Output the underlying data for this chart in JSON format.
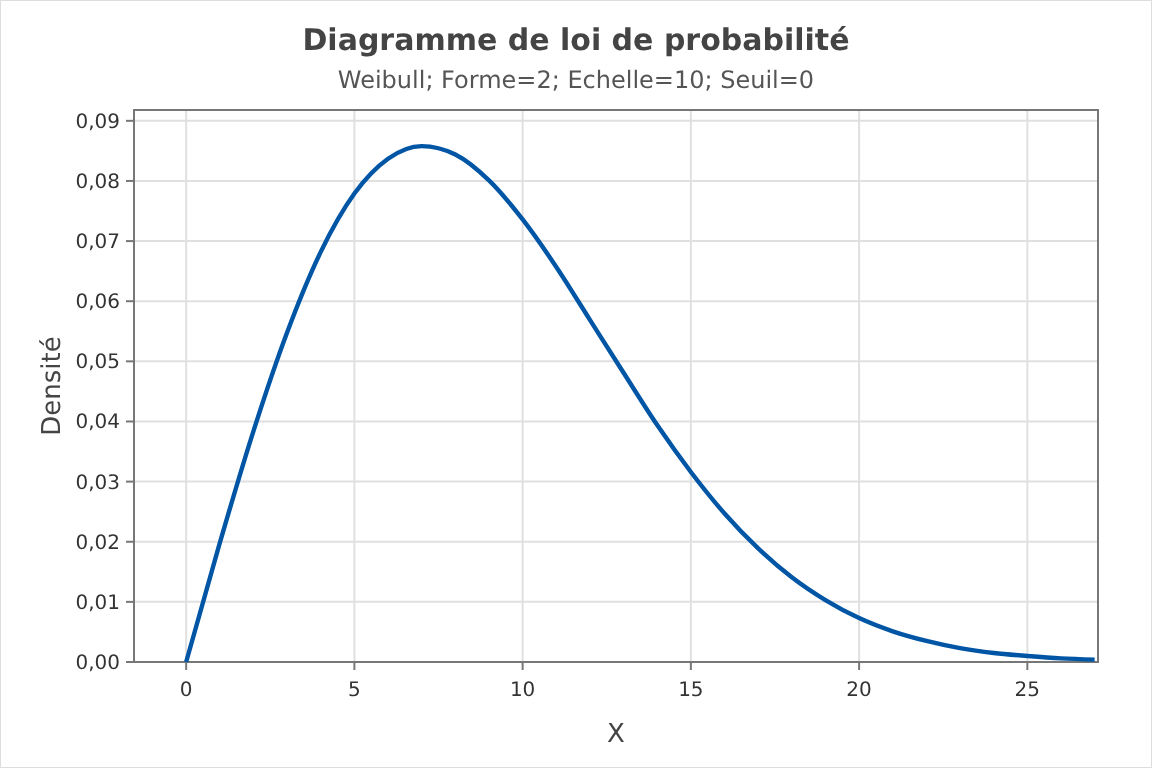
{
  "chart_data": {
    "type": "line",
    "title": "Diagramme de loi de probabilité",
    "subtitle": "Weibull; Forme=2; Echelle=10; Seuil=0",
    "xlabel": "X",
    "ylabel": "Densité",
    "x": [
      0,
      1,
      2,
      3,
      4,
      5,
      6,
      7,
      8,
      9,
      10,
      11,
      12,
      13,
      14,
      15,
      16,
      17,
      18,
      19,
      20,
      21,
      22,
      23,
      24,
      25,
      26,
      27
    ],
    "series": [
      {
        "color": "#0055a5",
        "values": [
          0,
          0.0198,
          0.0384,
          0.0548,
          0.0682,
          0.0779,
          0.0837,
          0.0858,
          0.0844,
          0.0801,
          0.0736,
          0.0657,
          0.0569,
          0.0481,
          0.0394,
          0.0316,
          0.0247,
          0.0189,
          0.0141,
          0.0103,
          0.0073,
          0.0051,
          0.0035,
          0.0023,
          0.0015,
          0.001,
          0.0006,
          0.0004
        ]
      }
    ],
    "xlim": [
      -1.55,
      27.1
    ],
    "xticks": [
      0,
      5,
      10,
      15,
      20,
      25
    ],
    "ylim": [
      0,
      0.0918
    ],
    "yticks": [
      {
        "value": 0,
        "label": "0,00"
      },
      {
        "value": 0.01,
        "label": "0,01"
      },
      {
        "value": 0.02,
        "label": "0,02"
      },
      {
        "value": 0.03,
        "label": "0,03"
      },
      {
        "value": 0.04,
        "label": "0,04"
      },
      {
        "value": 0.05,
        "label": "0,05"
      },
      {
        "value": 0.06,
        "label": "0,06"
      },
      {
        "value": 0.07,
        "label": "0,07"
      },
      {
        "value": 0.08,
        "label": "0,08"
      },
      {
        "value": 0.09,
        "label": "0,09"
      }
    ],
    "grid": true,
    "marker": "none",
    "line_style": "solid"
  }
}
